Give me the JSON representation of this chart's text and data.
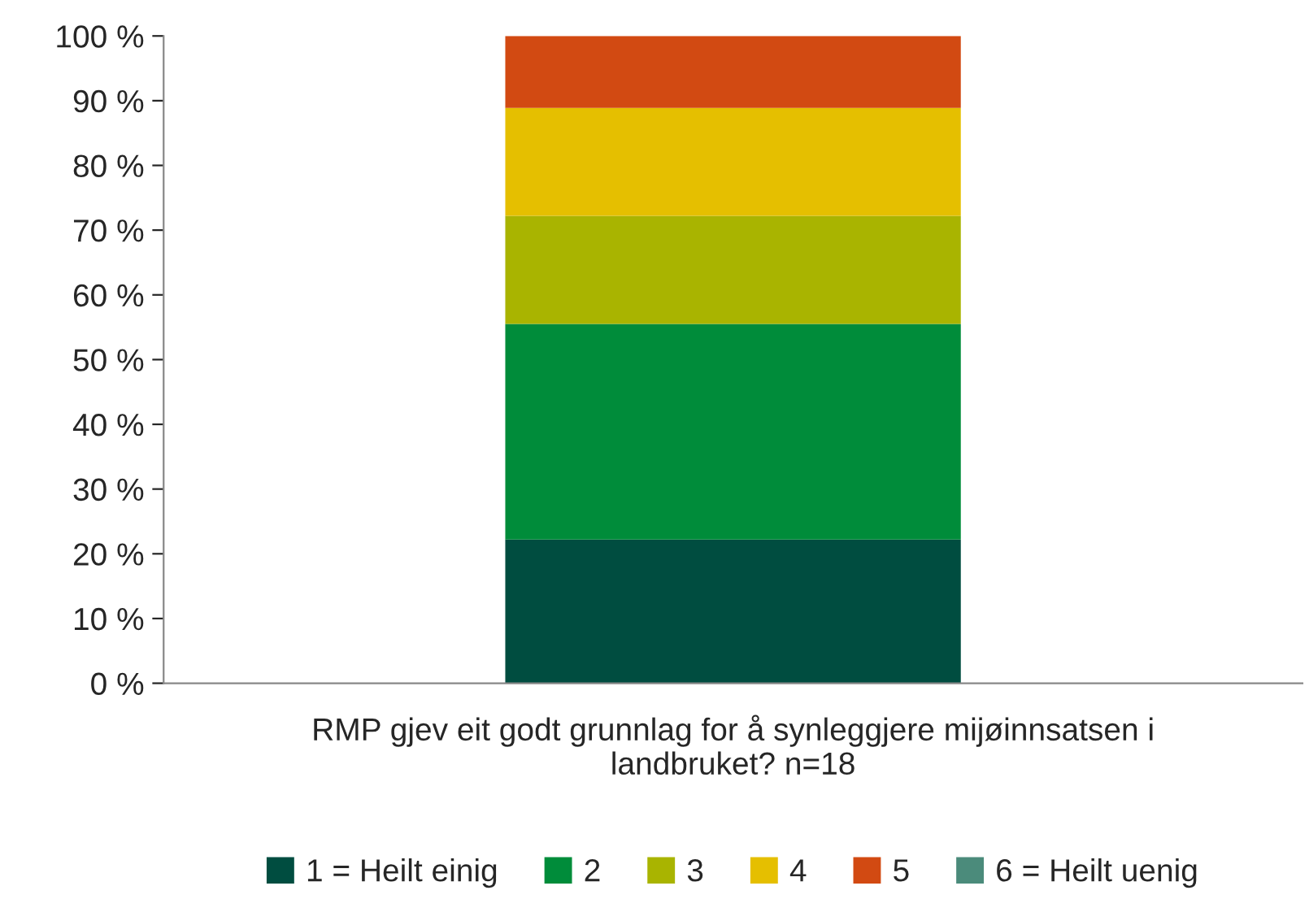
{
  "chart_data": {
    "type": "bar",
    "stacked": true,
    "categories": [
      "RMP gjev eit godt grunnlag for å synleggjere mijøinnsatsen i\nlandbruket? n=18"
    ],
    "series": [
      {
        "name": "1 = Heilt einig",
        "color": "#004d40",
        "values": [
          22.2
        ]
      },
      {
        "name": "2",
        "color": "#008c3a",
        "values": [
          33.3
        ]
      },
      {
        "name": "3",
        "color": "#a9b400",
        "values": [
          16.7
        ]
      },
      {
        "name": "4",
        "color": "#e5bf00",
        "values": [
          16.7
        ]
      },
      {
        "name": "5",
        "color": "#d24a12",
        "values": [
          11.1
        ]
      },
      {
        "name": "6 = Heilt uenig",
        "color": "#4b8b7b",
        "values": [
          0
        ]
      }
    ],
    "ylim": [
      0,
      100
    ],
    "yticks": [
      {
        "value": 0,
        "label": "0 %"
      },
      {
        "value": 10,
        "label": "10 %"
      },
      {
        "value": 20,
        "label": "20 %"
      },
      {
        "value": 30,
        "label": "30 %"
      },
      {
        "value": 40,
        "label": "40 %"
      },
      {
        "value": 50,
        "label": "50 %"
      },
      {
        "value": 60,
        "label": "60 %"
      },
      {
        "value": 70,
        "label": "70 %"
      },
      {
        "value": 80,
        "label": "80 %"
      },
      {
        "value": 90,
        "label": "90 %"
      },
      {
        "value": 100,
        "label": "100 %"
      }
    ],
    "grid": false,
    "legend": "bottom"
  }
}
